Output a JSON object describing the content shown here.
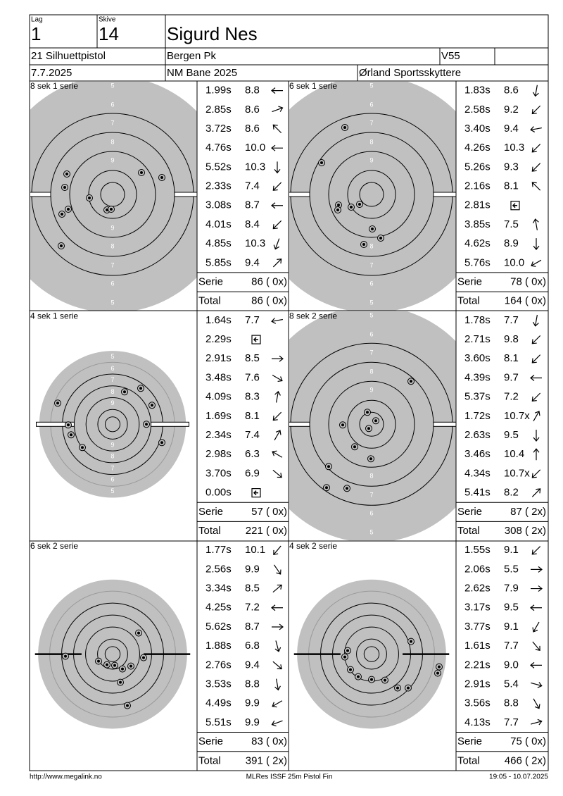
{
  "header": {
    "lag_label": "Lag",
    "lag": "1",
    "skive_label": "Skive",
    "skive": "14",
    "name": "Sigurd Nes",
    "event": "21 Silhuettpistol",
    "club": "Bergen Pk",
    "class": "V55",
    "date": "7.7.2025",
    "competition": "NM Bane 2025",
    "organizer": "Ørland Sportsskyttere"
  },
  "ring_numbers": [
    "5",
    "6",
    "7",
    "8",
    "9"
  ],
  "labels": {
    "serie": "Serie",
    "total": "Total"
  },
  "panels": [
    {
      "title": "8 sek 1 serie",
      "shots": [
        {
          "time": "1.99s",
          "score": "8.8"
        },
        {
          "time": "2.85s",
          "score": "8.6"
        },
        {
          "time": "3.72s",
          "score": "8.6"
        },
        {
          "time": "4.76s",
          "score": "10.0"
        },
        {
          "time": "5.52s",
          "score": "10.3"
        },
        {
          "time": "2.33s",
          "score": "7.4"
        },
        {
          "time": "3.08s",
          "score": "8.7"
        },
        {
          "time": "4.01s",
          "score": "8.4"
        },
        {
          "time": "4.85s",
          "score": "10.3"
        },
        {
          "time": "5.85s",
          "score": "9.4"
        }
      ],
      "serie": "86 ( 0x)",
      "total": "86 ( 0x)"
    },
    {
      "title": "6 sek 1 serie",
      "shots": [
        {
          "time": "1.83s",
          "score": "8.6"
        },
        {
          "time": "2.58s",
          "score": "9.2"
        },
        {
          "time": "3.40s",
          "score": "9.4"
        },
        {
          "time": "4.26s",
          "score": "10.3"
        },
        {
          "time": "5.26s",
          "score": "9.3"
        },
        {
          "time": "2.16s",
          "score": "8.1"
        },
        {
          "time": "2.81s"
        },
        {
          "time": "3.85s",
          "score": "7.5"
        },
        {
          "time": "4.62s",
          "score": "8.9"
        },
        {
          "time": "5.76s",
          "score": "10.0"
        }
      ],
      "serie": "78 ( 0x)",
      "total": "164 ( 0x)"
    },
    {
      "title": "4 sek 1 serie",
      "shots": [
        {
          "time": "1.64s",
          "score": "7.7"
        },
        {
          "time": "2.29s"
        },
        {
          "time": "2.91s",
          "score": "8.5"
        },
        {
          "time": "3.48s",
          "score": "7.6"
        },
        {
          "time": "4.09s",
          "score": "8.3"
        },
        {
          "time": "1.69s",
          "score": "8.1"
        },
        {
          "time": "2.34s",
          "score": "7.4"
        },
        {
          "time": "2.98s",
          "score": "6.3"
        },
        {
          "time": "3.70s",
          "score": "6.9"
        },
        {
          "time": "0.00s"
        }
      ],
      "serie": "57 ( 0x)",
      "total": "221 ( 0x)"
    },
    {
      "title": "8 sek 2 serie",
      "shots": [
        {
          "time": "1.78s",
          "score": "7.7"
        },
        {
          "time": "2.71s",
          "score": "9.8"
        },
        {
          "time": "3.60s",
          "score": "8.1"
        },
        {
          "time": "4.39s",
          "score": "9.7"
        },
        {
          "time": "5.37s",
          "score": "7.2"
        },
        {
          "time": "1.72s",
          "score": "10.7x"
        },
        {
          "time": "2.63s",
          "score": "9.5"
        },
        {
          "time": "3.46s",
          "score": "10.4"
        },
        {
          "time": "4.34s",
          "score": "10.7x"
        },
        {
          "time": "5.41s",
          "score": "8.2"
        }
      ],
      "serie": "87 ( 2x)",
      "total": "308 ( 2x)"
    },
    {
      "title": "6 sek 2 serie",
      "shots": [
        {
          "time": "1.77s",
          "score": "10.1"
        },
        {
          "time": "2.56s",
          "score": "9.9"
        },
        {
          "time": "3.34s",
          "score": "8.5"
        },
        {
          "time": "4.25s",
          "score": "7.2"
        },
        {
          "time": "5.62s",
          "score": "8.7"
        },
        {
          "time": "1.88s",
          "score": "6.8"
        },
        {
          "time": "2.76s",
          "score": "9.4"
        },
        {
          "time": "3.53s",
          "score": "8.8"
        },
        {
          "time": "4.49s",
          "score": "9.9"
        },
        {
          "time": "5.51s",
          "score": "9.9"
        }
      ],
      "serie": "83 ( 0x)",
      "total": "391 ( 2x)"
    },
    {
      "title": "4 sek 2 serie",
      "shots": [
        {
          "time": "1.55s",
          "score": "9.1"
        },
        {
          "time": "2.06s",
          "score": "5.5"
        },
        {
          "time": "2.62s",
          "score": "7.9"
        },
        {
          "time": "3.17s",
          "score": "9.5"
        },
        {
          "time": "3.77s",
          "score": "9.1"
        },
        {
          "time": "1.61s",
          "score": "7.7"
        },
        {
          "time": "2.21s",
          "score": "9.0"
        },
        {
          "time": "2.91s",
          "score": "5.4"
        },
        {
          "time": "3.56s",
          "score": "8.8"
        },
        {
          "time": "4.13s",
          "score": "7.7"
        }
      ],
      "serie": "75 ( 0x)",
      "total": "466 ( 2x)"
    }
  ],
  "footer": {
    "url": "http://www.megalink.no",
    "software": "MLRes ISSF 25m Pistol Fin",
    "timestamp": "19:05 - 10.07.2025"
  }
}
